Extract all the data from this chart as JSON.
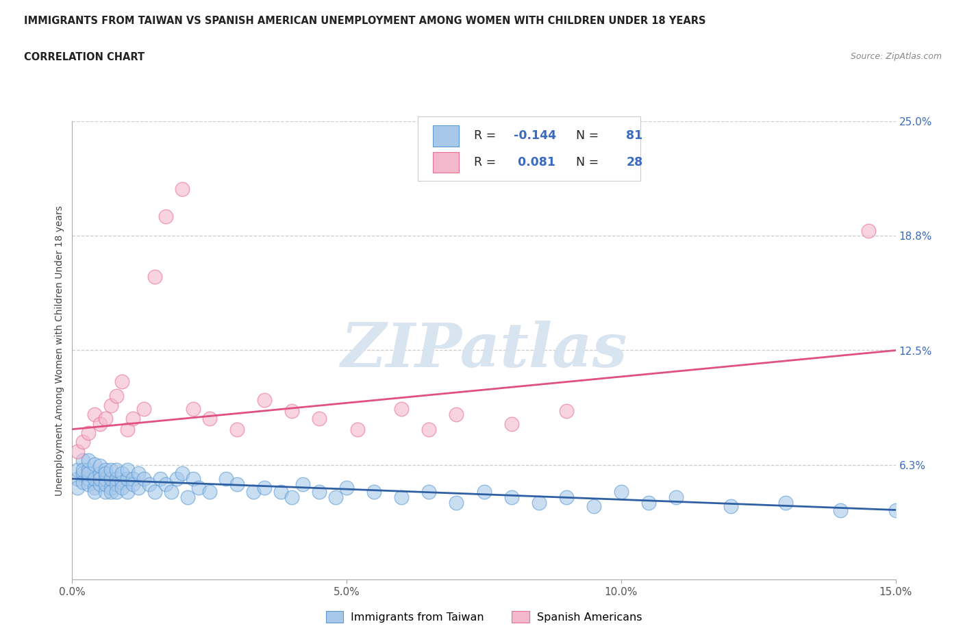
{
  "title_line1": "IMMIGRANTS FROM TAIWAN VS SPANISH AMERICAN UNEMPLOYMENT AMONG WOMEN WITH CHILDREN UNDER 18 YEARS",
  "title_line2": "CORRELATION CHART",
  "source": "Source: ZipAtlas.com",
  "ylabel": "Unemployment Among Women with Children Under 18 years",
  "xlim": [
    0.0,
    0.15
  ],
  "ylim": [
    0.0,
    0.25
  ],
  "xticks": [
    0.0,
    0.05,
    0.1,
    0.15
  ],
  "xtick_labels": [
    "0.0%",
    "5.0%",
    "10.0%",
    "15.0%"
  ],
  "ytick_vals": [
    0.0625,
    0.125,
    0.1875,
    0.25
  ],
  "ytick_labels": [
    "6.3%",
    "12.5%",
    "18.8%",
    "25.0%"
  ],
  "r_taiwan": -0.144,
  "n_taiwan": 81,
  "r_spanish": 0.081,
  "n_spanish": 28,
  "color_taiwan_fill": "#a8c8ea",
  "color_taiwan_edge": "#5b9bd5",
  "color_spanish_fill": "#f4b8cc",
  "color_spanish_edge": "#e87090",
  "color_taiwan_line": "#2e5fa3",
  "color_spanish_line": "#e05080",
  "color_legend_blue": "#3a6bbf",
  "watermark_color": "#d8e4f0",
  "background_color": "#ffffff",
  "grid_color": "#cccccc",
  "taiwan_x": [
    0.001,
    0.001,
    0.001,
    0.002,
    0.002,
    0.002,
    0.002,
    0.003,
    0.003,
    0.003,
    0.003,
    0.003,
    0.004,
    0.004,
    0.004,
    0.004,
    0.005,
    0.005,
    0.005,
    0.005,
    0.006,
    0.006,
    0.006,
    0.006,
    0.006,
    0.007,
    0.007,
    0.007,
    0.007,
    0.008,
    0.008,
    0.008,
    0.008,
    0.009,
    0.009,
    0.009,
    0.01,
    0.01,
    0.01,
    0.011,
    0.011,
    0.012,
    0.012,
    0.013,
    0.014,
    0.015,
    0.016,
    0.017,
    0.018,
    0.019,
    0.02,
    0.021,
    0.022,
    0.023,
    0.025,
    0.028,
    0.03,
    0.033,
    0.035,
    0.038,
    0.04,
    0.042,
    0.045,
    0.048,
    0.05,
    0.055,
    0.06,
    0.065,
    0.07,
    0.075,
    0.08,
    0.085,
    0.09,
    0.095,
    0.1,
    0.105,
    0.11,
    0.12,
    0.13,
    0.14,
    0.15
  ],
  "taiwan_y": [
    0.055,
    0.06,
    0.05,
    0.065,
    0.058,
    0.053,
    0.06,
    0.055,
    0.06,
    0.052,
    0.058,
    0.065,
    0.05,
    0.055,
    0.063,
    0.048,
    0.052,
    0.058,
    0.055,
    0.062,
    0.048,
    0.055,
    0.06,
    0.052,
    0.058,
    0.05,
    0.055,
    0.06,
    0.048,
    0.055,
    0.052,
    0.06,
    0.048,
    0.053,
    0.058,
    0.05,
    0.055,
    0.06,
    0.048,
    0.055,
    0.052,
    0.058,
    0.05,
    0.055,
    0.052,
    0.048,
    0.055,
    0.052,
    0.048,
    0.055,
    0.058,
    0.045,
    0.055,
    0.05,
    0.048,
    0.055,
    0.052,
    0.048,
    0.05,
    0.048,
    0.045,
    0.052,
    0.048,
    0.045,
    0.05,
    0.048,
    0.045,
    0.048,
    0.042,
    0.048,
    0.045,
    0.042,
    0.045,
    0.04,
    0.048,
    0.042,
    0.045,
    0.04,
    0.042,
    0.038,
    0.038
  ],
  "spanish_x": [
    0.001,
    0.002,
    0.003,
    0.004,
    0.005,
    0.006,
    0.007,
    0.008,
    0.009,
    0.01,
    0.011,
    0.013,
    0.015,
    0.017,
    0.02,
    0.022,
    0.025,
    0.03,
    0.035,
    0.04,
    0.045,
    0.052,
    0.06,
    0.065,
    0.07,
    0.08,
    0.09,
    0.145
  ],
  "spanish_y": [
    0.07,
    0.075,
    0.08,
    0.09,
    0.085,
    0.088,
    0.095,
    0.1,
    0.108,
    0.082,
    0.088,
    0.093,
    0.165,
    0.198,
    0.213,
    0.093,
    0.088,
    0.082,
    0.098,
    0.092,
    0.088,
    0.082,
    0.093,
    0.082,
    0.09,
    0.085,
    0.092,
    0.19
  ],
  "taiwan_line_x0": 0.0,
  "taiwan_line_x1": 0.15,
  "taiwan_line_y0": 0.055,
  "taiwan_line_y1": 0.038,
  "spanish_line_x0": 0.0,
  "spanish_line_x1": 0.15,
  "spanish_line_y0": 0.082,
  "spanish_line_y1": 0.125
}
